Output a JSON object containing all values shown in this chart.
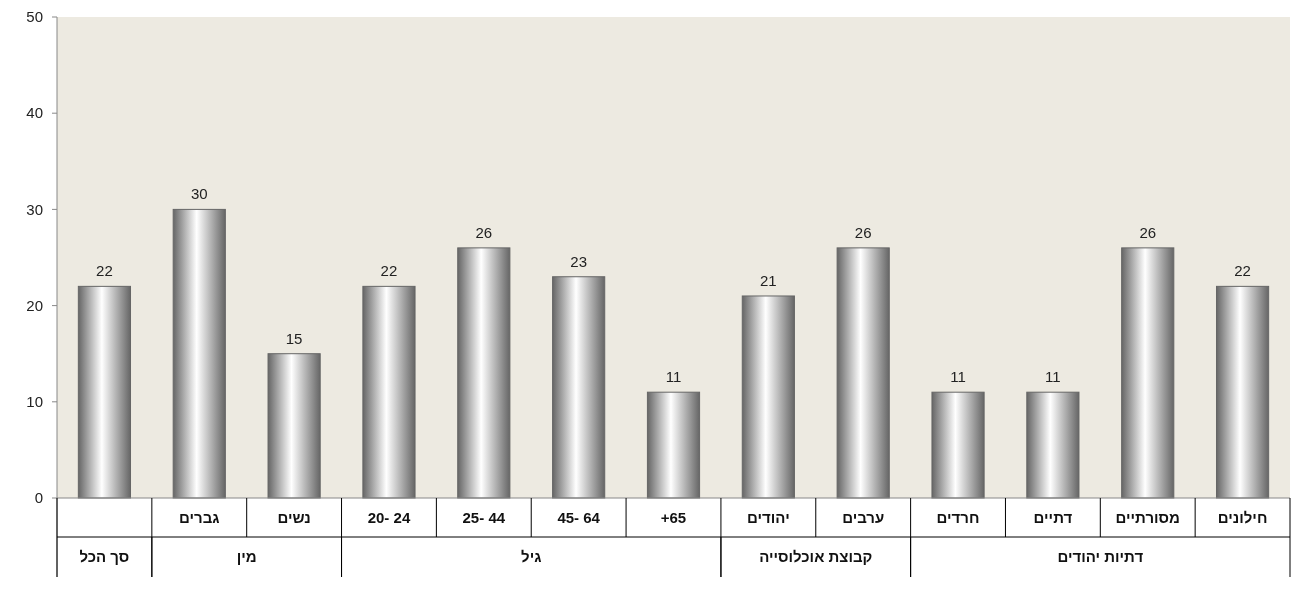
{
  "chart_data": {
    "type": "bar",
    "categories": [
      null,
      "גברים",
      "נשים",
      "20- 24",
      "25- 44",
      "45- 64",
      "+65",
      "יהודים",
      "ערבים",
      "חרדים",
      "דתיים",
      "מסורתיים",
      "חילונים"
    ],
    "values": [
      22,
      30,
      15,
      22,
      26,
      23,
      11,
      21,
      26,
      11,
      11,
      26,
      22
    ],
    "color": "#666666",
    "ylim": [
      0,
      50
    ],
    "yticks": [
      0,
      10,
      20,
      30,
      40,
      50
    ],
    "grid": false,
    "data_labels": true,
    "annotations": [
      "סך הכל",
      "מין",
      "גיל",
      "קבוצת אוכלוסייה",
      "דתיות יהודים"
    ]
  }
}
